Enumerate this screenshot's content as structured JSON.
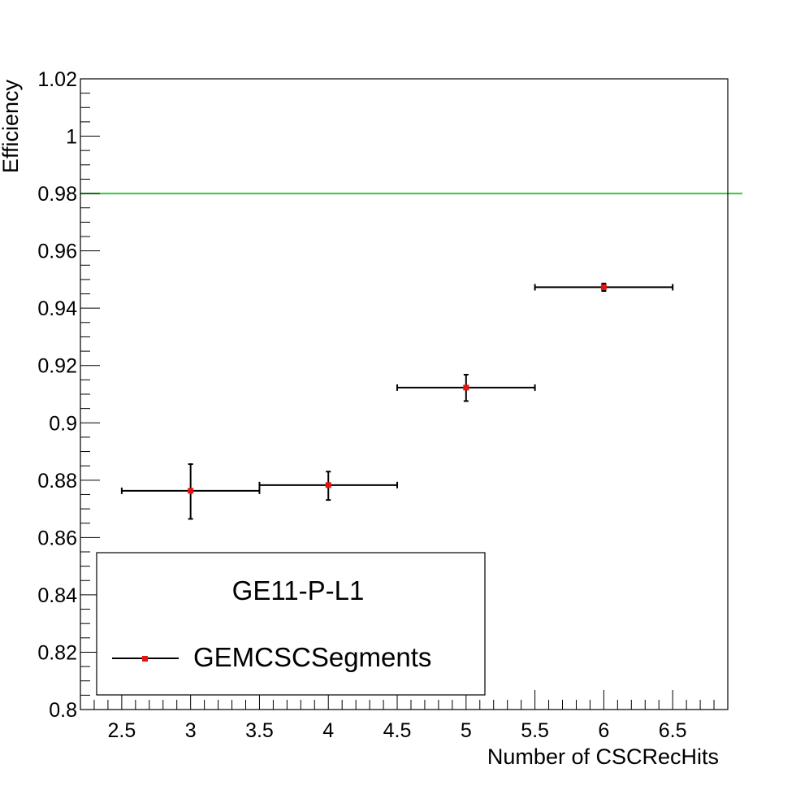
{
  "chart_data": {
    "type": "scatter",
    "xlabel": "Number of CSCRecHits",
    "ylabel": "Efficiency",
    "xlim": [
      2.2,
      6.9
    ],
    "ylim": [
      0.8,
      1.02
    ],
    "x_ticks": [
      2.5,
      3,
      3.5,
      4,
      4.5,
      5,
      5.5,
      6,
      6.5
    ],
    "x_tick_labels": [
      "2.5",
      "3",
      "3.5",
      "4",
      "4.5",
      "5",
      "5.5",
      "6",
      "6.5"
    ],
    "y_ticks": [
      0.8,
      0.82,
      0.84,
      0.86,
      0.88,
      0.9,
      0.92,
      0.94,
      0.96,
      0.98,
      1.0,
      1.02
    ],
    "y_tick_labels": [
      "0.8",
      "0.82",
      "0.84",
      "0.86",
      "0.88",
      "0.9",
      "0.92",
      "0.94",
      "0.96",
      "0.98",
      "1",
      "1.02"
    ],
    "series": [
      {
        "name": "GEMCSCSegments",
        "color": "#e8130f",
        "points": [
          {
            "x": 3,
            "y": 0.8763,
            "xerr": 0.5,
            "yerr_low": 0.0098,
            "yerr_high": 0.0093
          },
          {
            "x": 4,
            "y": 0.8783,
            "xerr": 0.5,
            "yerr_low": 0.0052,
            "yerr_high": 0.0047
          },
          {
            "x": 5,
            "y": 0.9123,
            "xerr": 0.5,
            "yerr_low": 0.0047,
            "yerr_high": 0.0045
          },
          {
            "x": 6,
            "y": 0.9473,
            "xerr": 0.5,
            "yerr_low": 0.0013,
            "yerr_high": 0.0013
          }
        ]
      }
    ],
    "reference_line": {
      "y": 0.98,
      "color": "#33cc33"
    },
    "legend": {
      "title": "GE11-P-L1",
      "position": "bottom-left",
      "entries": [
        "GEMCSCSegments"
      ]
    },
    "grid": false
  }
}
